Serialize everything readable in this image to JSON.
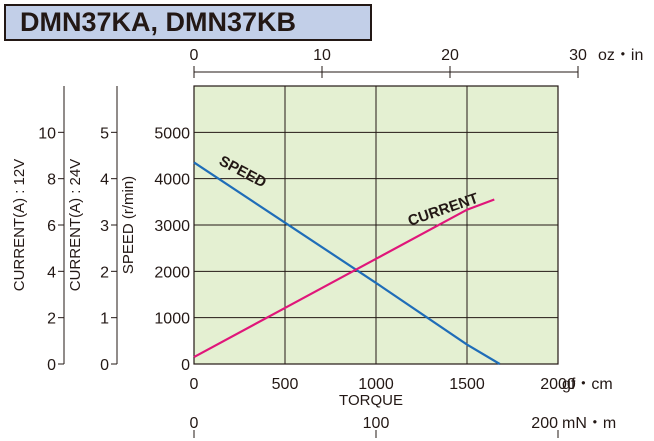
{
  "title": "DMN37KA, DMN37KB",
  "chart_data": {
    "type": "line",
    "title": "DMN37KA, DMN37KB",
    "xlabel": "TORQUE",
    "x_unit": "gf・cm",
    "xlim": [
      0,
      2000
    ],
    "x_ticks": [
      "0",
      "500",
      "1000",
      "1500",
      "2000"
    ],
    "top_axis": {
      "unit": "oz・in",
      "range": [
        0,
        30
      ],
      "ticks": [
        "0",
        "10",
        "20",
        "30"
      ]
    },
    "bottom_axis": {
      "unit": "mN・m",
      "range": [
        0,
        200
      ],
      "ticks": [
        "0",
        "100",
        "200"
      ]
    },
    "ylabel": "SPEED (r/min)",
    "ylim": [
      0,
      6000
    ],
    "y_ticks": [
      "0",
      "1000",
      "2000",
      "3000",
      "4000",
      "5000"
    ],
    "current_24v_axis": {
      "label": "CURRENT(A) : 24V",
      "range": [
        0,
        6
      ],
      "ticks": [
        "0",
        "1",
        "2",
        "3",
        "4",
        "5"
      ]
    },
    "current_12v_axis": {
      "label": "CURRENT(A) : 12V",
      "range": [
        0,
        12
      ],
      "ticks": [
        "0",
        "2",
        "4",
        "6",
        "8",
        "10"
      ]
    },
    "grid": true,
    "background": "#e4f0d2",
    "series": [
      {
        "name": "SPEED",
        "color": "#1f6db8",
        "x": [
          0,
          500,
          1000,
          1500,
          1680
        ],
        "y": [
          4350,
          3050,
          1750,
          420,
          0
        ]
      },
      {
        "name": "CURRENT",
        "color": "#e0167a",
        "x": [
          0,
          500,
          1000,
          1500,
          1650
        ],
        "y": [
          150,
          1210,
          2270,
          3330,
          3550
        ],
        "current_24v": [
          0.15,
          1.21,
          2.27,
          3.33,
          3.55
        ],
        "current_12v": [
          0.3,
          2.42,
          4.54,
          6.66,
          7.1
        ]
      }
    ]
  }
}
